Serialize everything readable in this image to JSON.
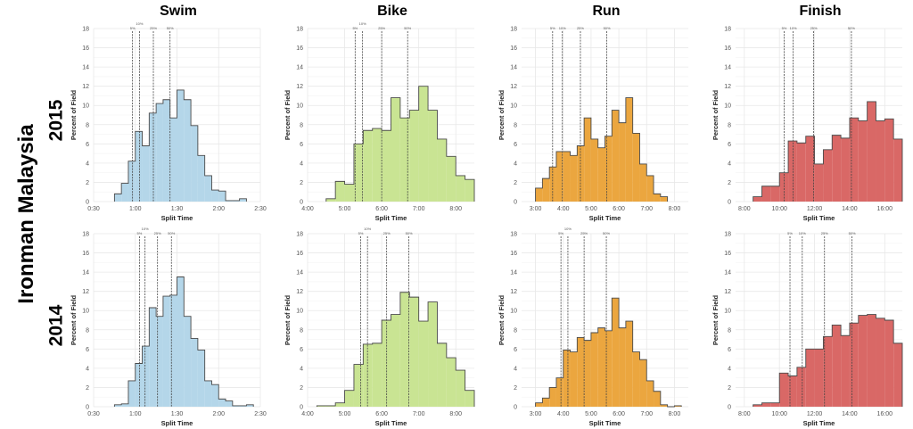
{
  "title": "Ironman Malaysia",
  "rows": [
    "2015",
    "2014"
  ],
  "columns": [
    "Swim",
    "Bike",
    "Run",
    "Finish"
  ],
  "colors": {
    "Swim": "#b4d6e9",
    "Bike": "#c9e493",
    "Run": "#eba63f",
    "Finish": "#d96866",
    "outline": "#4a4a4a",
    "grid": "#e8e8e8"
  },
  "chart_data": [
    {
      "type": "bar",
      "histogram": true,
      "title": "Swim",
      "row": "2015",
      "xlabel": "Split Time",
      "ylabel": "Percent of Field",
      "unit": "minutes",
      "xlim": [
        30,
        150
      ],
      "ylim": [
        0,
        18
      ],
      "grid": true,
      "xticks": [
        "0:30",
        "1:00",
        "1:30",
        "2:00",
        "2:30"
      ],
      "yticks": [
        0,
        2,
        4,
        6,
        8,
        10,
        12,
        14,
        16,
        18
      ],
      "bin_start": 45,
      "bin_width": 5,
      "values": [
        0.8,
        1.9,
        4.2,
        7.3,
        5.8,
        9.2,
        10.2,
        10.6,
        8.7,
        11.6,
        10.6,
        7.9,
        4.8,
        2.7,
        1.2,
        1.1,
        0.1,
        0.1,
        0.3
      ],
      "percentiles": [
        {
          "label": "5%",
          "x": 58
        },
        {
          "label": "10%",
          "x": 63
        },
        {
          "label": "25%",
          "x": 73
        },
        {
          "label": "50%",
          "x": 85
        }
      ]
    },
    {
      "type": "bar",
      "histogram": true,
      "title": "Bike",
      "row": "2015",
      "xlabel": "Split Time",
      "ylabel": "Percent of Field",
      "unit": "minutes",
      "xlim": [
        240,
        510
      ],
      "ylim": [
        0,
        18
      ],
      "grid": true,
      "xticks": [
        "4:00",
        "5:00",
        "6:00",
        "7:00",
        "8:00"
      ],
      "yticks": [
        0,
        2,
        4,
        6,
        8,
        10,
        12,
        14,
        16,
        18
      ],
      "bin_start": 270,
      "bin_width": 15,
      "values": [
        0.3,
        2.1,
        1.8,
        6.0,
        7.4,
        7.6,
        7.4,
        10.8,
        8.7,
        9.5,
        12.0,
        9.5,
        6.5,
        4.7,
        2.7,
        2.3
      ],
      "percentiles": [
        {
          "label": "5%",
          "x": 317
        },
        {
          "label": "10%",
          "x": 329
        },
        {
          "label": "25%",
          "x": 360
        },
        {
          "label": "50%",
          "x": 402
        }
      ]
    },
    {
      "type": "bar",
      "histogram": true,
      "title": "Run",
      "row": "2015",
      "xlabel": "Split Time",
      "ylabel": "Percent of Field",
      "unit": "minutes",
      "xlim": [
        150,
        510
      ],
      "ylim": [
        0,
        18
      ],
      "grid": true,
      "xticks": [
        "3:00",
        "4:00",
        "5:00",
        "6:00",
        "7:00",
        "8:00"
      ],
      "yticks": [
        0,
        2,
        4,
        6,
        8,
        10,
        12,
        14,
        16,
        18
      ],
      "bin_start": 180,
      "bin_width": 15,
      "values": [
        1.4,
        2.4,
        3.6,
        5.2,
        5.2,
        4.8,
        5.8,
        8.7,
        6.5,
        5.6,
        6.8,
        9.5,
        8.2,
        10.8,
        7.1,
        3.9,
        2.7,
        0.8,
        0.5
      ],
      "percentiles": [
        {
          "label": "5%",
          "x": 217
        },
        {
          "label": "10%",
          "x": 238
        },
        {
          "label": "25%",
          "x": 277
        },
        {
          "label": "50%",
          "x": 334
        }
      ]
    },
    {
      "type": "bar",
      "histogram": true,
      "title": "Finish",
      "row": "2015",
      "xlabel": "Split Time",
      "ylabel": "Percent of Field",
      "unit": "minutes",
      "xlim": [
        450,
        1020
      ],
      "ylim": [
        0,
        18
      ],
      "grid": true,
      "xticks": [
        "8:00",
        "10:00",
        "12:00",
        "14:00",
        "16:00"
      ],
      "yticks": [
        0,
        2,
        4,
        6,
        8,
        10,
        12,
        14,
        16,
        18
      ],
      "bin_start": 510,
      "bin_width": 30,
      "values": [
        0.5,
        1.6,
        1.6,
        3.0,
        6.3,
        6.1,
        6.8,
        3.9,
        5.4,
        6.9,
        6.6,
        8.7,
        8.4,
        10.4,
        8.4,
        8.6,
        6.5
      ],
      "percentiles": [
        {
          "label": "5%",
          "x": 616
        },
        {
          "label": "10%",
          "x": 647
        },
        {
          "label": "25%",
          "x": 717
        },
        {
          "label": "50%",
          "x": 846
        }
      ]
    },
    {
      "type": "bar",
      "histogram": true,
      "title": "Swim",
      "row": "2014",
      "xlabel": "Split Time",
      "ylabel": "Percent of Field",
      "unit": "minutes",
      "xlim": [
        30,
        150
      ],
      "ylim": [
        0,
        18
      ],
      "grid": true,
      "xticks": [
        "0:30",
        "1:00",
        "1:30",
        "2:00",
        "2:30"
      ],
      "yticks": [
        0,
        2,
        4,
        6,
        8,
        10,
        12,
        14,
        16,
        18
      ],
      "bin_start": 45,
      "bin_width": 5,
      "values": [
        0.2,
        0.3,
        2.7,
        4.5,
        6.3,
        10.3,
        9.4,
        11.5,
        11.6,
        13.5,
        9.4,
        7.1,
        5.9,
        2.7,
        2.3,
        0.8,
        0.6,
        0.1,
        0.1,
        0.2
      ],
      "percentiles": [
        {
          "label": "5%",
          "x": 63
        },
        {
          "label": "10%",
          "x": 67
        },
        {
          "label": "25%",
          "x": 76
        },
        {
          "label": "50%",
          "x": 86
        }
      ]
    },
    {
      "type": "bar",
      "histogram": true,
      "title": "Bike",
      "row": "2014",
      "xlabel": "Split Time",
      "ylabel": "Percent of Field",
      "unit": "minutes",
      "xlim": [
        240,
        510
      ],
      "ylim": [
        0,
        18
      ],
      "grid": true,
      "xticks": [
        "4:00",
        "5:00",
        "6:00",
        "7:00",
        "8:00"
      ],
      "yticks": [
        0,
        2,
        4,
        6,
        8,
        10,
        12,
        14,
        16,
        18
      ],
      "bin_start": 255,
      "bin_width": 15,
      "values": [
        0.1,
        0.1,
        0.4,
        1.7,
        4.4,
        6.5,
        6.6,
        9.0,
        9.6,
        11.9,
        11.4,
        8.9,
        10.9,
        6.6,
        5.1,
        3.8,
        1.7
      ],
      "percentiles": [
        {
          "label": "5%",
          "x": 326
        },
        {
          "label": "10%",
          "x": 337
        },
        {
          "label": "25%",
          "x": 368
        },
        {
          "label": "50%",
          "x": 404
        }
      ]
    },
    {
      "type": "bar",
      "histogram": true,
      "title": "Run",
      "row": "2014",
      "xlabel": "Split Time",
      "ylabel": "Percent of Field",
      "unit": "minutes",
      "xlim": [
        150,
        510
      ],
      "ylim": [
        0,
        18
      ],
      "grid": true,
      "xticks": [
        "3:00",
        "4:00",
        "5:00",
        "6:00",
        "7:00",
        "8:00"
      ],
      "yticks": [
        0,
        2,
        4,
        6,
        8,
        10,
        12,
        14,
        16,
        18
      ],
      "bin_start": 180,
      "bin_width": 15,
      "values": [
        0.4,
        0.9,
        2.0,
        3.0,
        5.9,
        5.7,
        7.2,
        6.9,
        7.7,
        8.2,
        7.9,
        11.3,
        8.2,
        8.9,
        5.7,
        4.9,
        2.7,
        1.6,
        0.2,
        0,
        0.1
      ],
      "percentiles": [
        {
          "label": "5%",
          "x": 235
        },
        {
          "label": "10%",
          "x": 250
        },
        {
          "label": "25%",
          "x": 285
        },
        {
          "label": "50%",
          "x": 333
        }
      ]
    },
    {
      "type": "bar",
      "histogram": true,
      "title": "Finish",
      "row": "2014",
      "xlabel": "Split Time",
      "ylabel": "Percent of Field",
      "unit": "minutes",
      "xlim": [
        450,
        1020
      ],
      "ylim": [
        0,
        18
      ],
      "grid": true,
      "xticks": [
        "8:00",
        "10:00",
        "12:00",
        "14:00",
        "16:00"
      ],
      "yticks": [
        0,
        2,
        4,
        6,
        8,
        10,
        12,
        14,
        16,
        18
      ],
      "bin_start": 510,
      "bin_width": 30,
      "values": [
        0.2,
        0.4,
        0.4,
        3.5,
        3.2,
        4.1,
        6.0,
        6.0,
        7.3,
        8.5,
        7.4,
        8.7,
        9.5,
        9.6,
        9.2,
        9.0,
        6.6
      ],
      "percentiles": [
        {
          "label": "5%",
          "x": 636
        },
        {
          "label": "10%",
          "x": 678
        },
        {
          "label": "25%",
          "x": 754
        },
        {
          "label": "50%",
          "x": 848
        }
      ]
    }
  ]
}
